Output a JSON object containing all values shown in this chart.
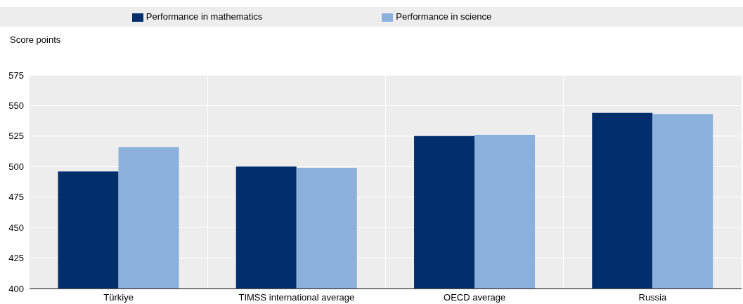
{
  "chart_data": {
    "type": "bar",
    "ylabel": "Score points",
    "categories": [
      "Türkiye",
      "TIMSS international average",
      "OECD average",
      "Russia"
    ],
    "series": [
      {
        "name": "Performance in mathematics",
        "color": "#002f6c",
        "values": [
          496,
          500,
          525,
          544
        ]
      },
      {
        "name": "Performance in science",
        "color": "#8cb0dc",
        "values": [
          516,
          499,
          526,
          543
        ]
      }
    ],
    "ylim": [
      400,
      575
    ],
    "yticks": [
      400,
      425,
      450,
      475,
      500,
      525,
      550,
      575
    ],
    "grid": true,
    "legend": "top"
  }
}
